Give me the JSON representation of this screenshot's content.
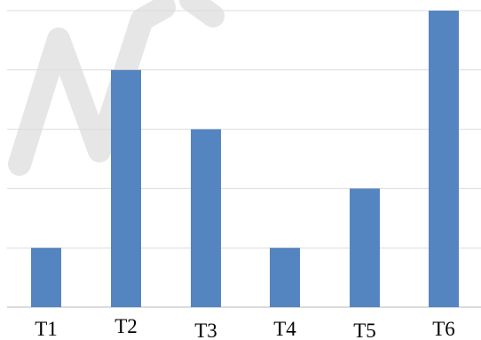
{
  "chart_data": {
    "type": "bar",
    "categories": [
      "T1",
      "T2",
      "T3",
      "T4",
      "T5",
      "T6"
    ],
    "values": [
      1,
      4,
      3,
      1,
      2,
      5
    ],
    "ylim": [
      0,
      5
    ],
    "grid": true,
    "legend": "none",
    "title": "",
    "xlabel": "",
    "ylabel": ""
  },
  "colors": {
    "bar": "#5585c0",
    "grid": "#dcdcdc",
    "axis": "#cfcfcf",
    "watermark": "#e6e6e6"
  }
}
